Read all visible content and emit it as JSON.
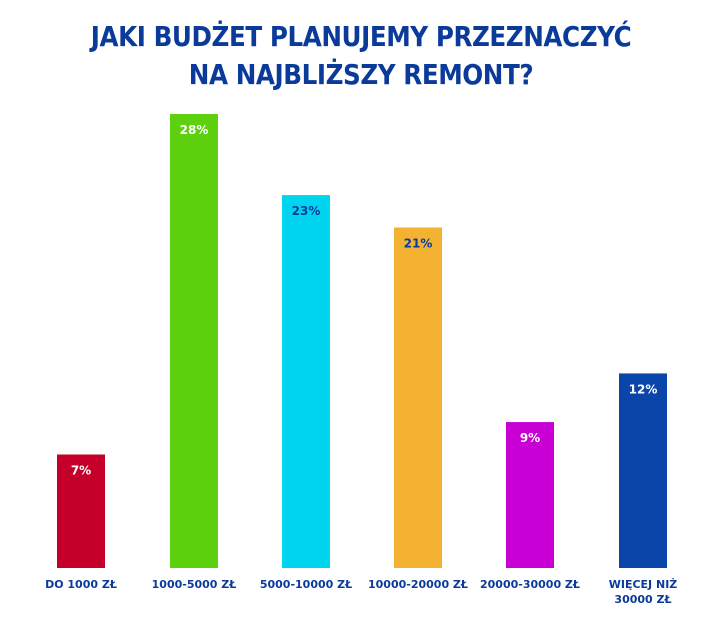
{
  "title_lines": [
    "JAKI BUDŻET PLANUJEMY PRZEZNACZYĆ",
    "NA NAJBLIŻSZY REMONT?"
  ],
  "chart_data": {
    "type": "bar",
    "title": "JAKI BUDŻET PLANUJEMY PRZEZNACZYĆ NA NAJBLIŻSZY REMONT?",
    "categories": [
      "DO 1000 ZŁ",
      "1000-5000 ZŁ",
      "5000-10000 ZŁ",
      "10000-20000 ZŁ",
      "20000-30000 ZŁ",
      "WIĘCEJ NIŻ 30000 ZŁ"
    ],
    "category_label_lines": [
      [
        "DO 1000 ZŁ"
      ],
      [
        "1000-5000 ZŁ"
      ],
      [
        "5000-10000 ZŁ"
      ],
      [
        "10000-20000 ZŁ"
      ],
      [
        "20000-30000 ZŁ"
      ],
      [
        "WIĘCEJ NIŻ",
        "30000 ZŁ"
      ]
    ],
    "values": [
      7,
      28,
      23,
      21,
      9,
      12
    ],
    "value_labels": [
      "7%",
      "28%",
      "23%",
      "21%",
      "9%",
      "12%"
    ],
    "colors": [
      "#c4002a",
      "#5ed10e",
      "#00d5ef",
      "#f4b233",
      "#c800d6",
      "#0a45aa"
    ],
    "label_colors": [
      "#ffffff",
      "#ffffff",
      "#0a3a9a",
      "#0a3a9a",
      "#ffffff",
      "#ffffff"
    ],
    "unit": "%",
    "xlabel": "",
    "ylabel": "",
    "ylim": [
      0,
      28
    ],
    "grid": false,
    "legend": "none"
  }
}
